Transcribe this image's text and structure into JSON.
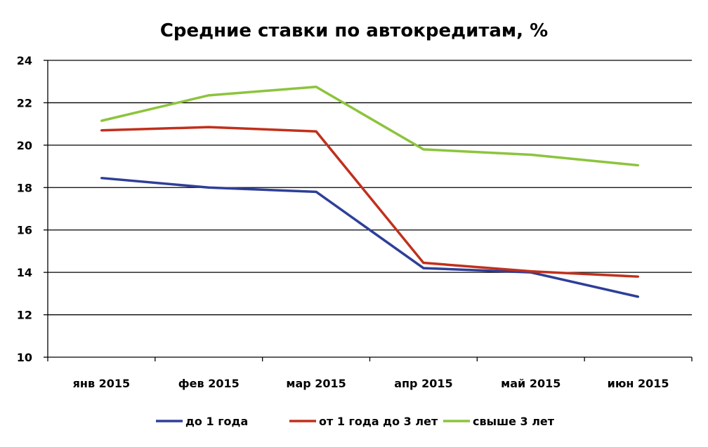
{
  "chart_data": {
    "type": "line",
    "title": "Средние ставки по автокредитам, %",
    "xlabel": "",
    "ylabel": "",
    "categories": [
      "янв 2015",
      "фев 2015",
      "мар 2015",
      "апр 2015",
      "май 2015",
      "июн 2015"
    ],
    "ylim": [
      10,
      24
    ],
    "yticks": [
      10,
      12,
      14,
      16,
      18,
      20,
      22,
      24
    ],
    "grid": true,
    "legend_position": "bottom",
    "series": [
      {
        "name": "до 1 года",
        "color": "#2e3f98",
        "values": [
          18.45,
          18.0,
          17.8,
          14.2,
          14.0,
          12.85
        ]
      },
      {
        "name": "от 1 года до 3 лет",
        "color": "#c0301c",
        "values": [
          20.7,
          20.85,
          20.65,
          14.45,
          14.05,
          13.8
        ]
      },
      {
        "name": "свыше 3 лет",
        "color": "#8cc43c",
        "values": [
          21.15,
          22.35,
          22.75,
          19.8,
          19.55,
          19.05
        ]
      }
    ]
  }
}
